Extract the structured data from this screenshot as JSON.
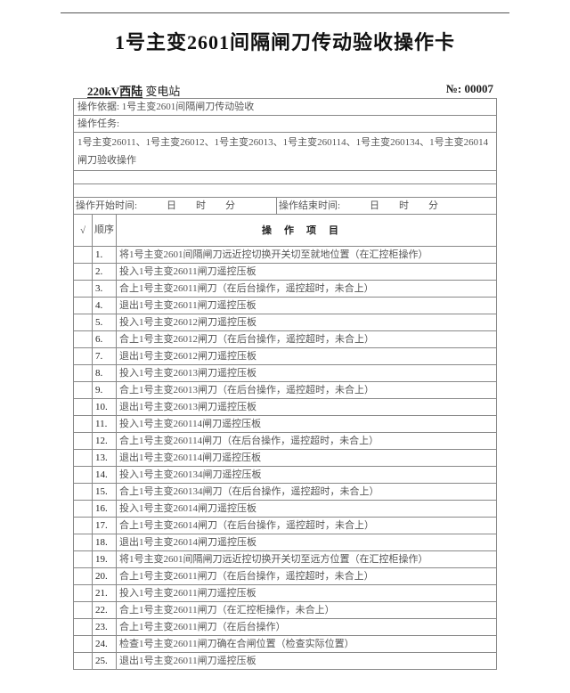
{
  "title": "1号主变2601间隔闸刀传动验收操作卡",
  "station": {
    "name": "220kV西陆",
    "suffix": "变电站"
  },
  "serial": "№: 00007",
  "basis": "操作依据: 1号主变2601间隔闸刀传动验收",
  "task_label": "操作任务:",
  "task_text": "1号主变26011、1号主变26012、1号主变26013、1号主变260114、1号主变260134、1号主变26014闸刀验收操作",
  "start_time": "操作开始时间:　　　日　　时　　分",
  "end_time": "操作结束时间:　　　日　　时　　分",
  "header": {
    "check": "√",
    "seq": "顺序",
    "item": "操作项目"
  },
  "items": [
    {
      "seq": "1.",
      "text": "将1号主变2601间隔闸刀远近控切换开关切至就地位置（在汇控柜操作）"
    },
    {
      "seq": "2.",
      "text": "投入1号主变26011闸刀遥控压板"
    },
    {
      "seq": "3.",
      "text": "合上1号主变26011闸刀（在后台操作，遥控超时，未合上）"
    },
    {
      "seq": "4.",
      "text": "退出1号主变26011闸刀遥控压板"
    },
    {
      "seq": "5.",
      "text": "投入1号主变26012闸刀遥控压板"
    },
    {
      "seq": "6.",
      "text": "合上1号主变26012闸刀（在后台操作，遥控超时，未合上）"
    },
    {
      "seq": "7.",
      "text": "退出1号主变26012闸刀遥控压板"
    },
    {
      "seq": "8.",
      "text": "投入1号主变26013闸刀遥控压板"
    },
    {
      "seq": "9.",
      "text": "合上1号主变26013闸刀（在后台操作，遥控超时，未合上）"
    },
    {
      "seq": "10.",
      "text": "退出1号主变26013闸刀遥控压板"
    },
    {
      "seq": "11.",
      "text": "投入1号主变260114闸刀遥控压板"
    },
    {
      "seq": "12.",
      "text": "合上1号主变260114闸刀（在后台操作，遥控超时，未合上）"
    },
    {
      "seq": "13.",
      "text": "退出1号主变260114闸刀遥控压板"
    },
    {
      "seq": "14.",
      "text": "投入1号主变260134闸刀遥控压板"
    },
    {
      "seq": "15.",
      "text": "合上1号主变260134闸刀（在后台操作，遥控超时，未合上）"
    },
    {
      "seq": "16.",
      "text": "投入1号主变26014闸刀遥控压板"
    },
    {
      "seq": "17.",
      "text": "合上1号主变26014闸刀（在后台操作，遥控超时，未合上）"
    },
    {
      "seq": "18.",
      "text": "退出1号主变26014闸刀遥控压板"
    },
    {
      "seq": "19.",
      "text": "将1号主变2601间隔闸刀远近控切换开关切至远方位置（在汇控柜操作）"
    },
    {
      "seq": "20.",
      "text": "合上1号主变26011闸刀（在后台操作，遥控超时，未合上）"
    },
    {
      "seq": "21.",
      "text": "投入1号主变26011闸刀遥控压板"
    },
    {
      "seq": "22.",
      "text": "合上1号主变26011闸刀（在汇控柜操作，未合上）"
    },
    {
      "seq": "23.",
      "text": "合上1号主变26011闸刀（在后台操作）"
    },
    {
      "seq": "24.",
      "text": "检查1号主变26011闸刀确在合闸位置（检查实际位置）"
    },
    {
      "seq": "25.",
      "text": "退出1号主变26011闸刀遥控压板"
    }
  ]
}
